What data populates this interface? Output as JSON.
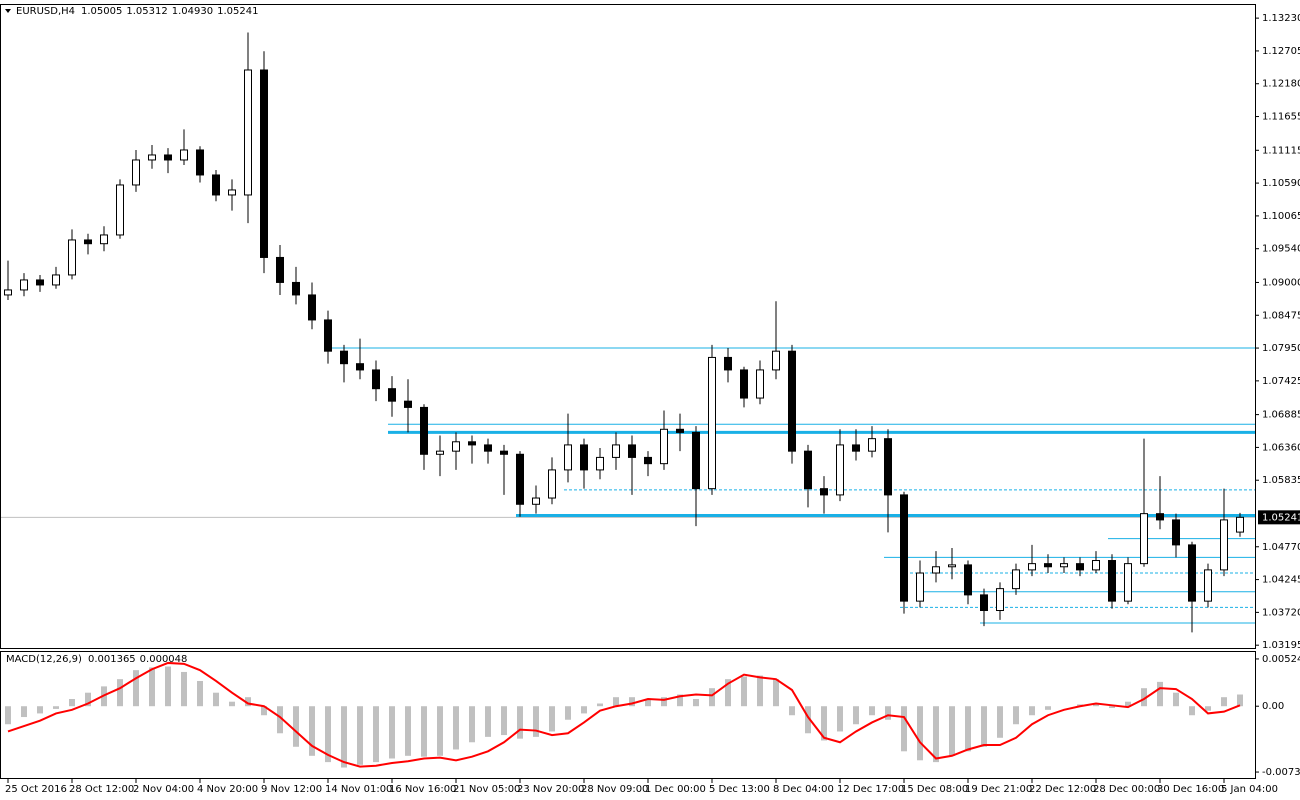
{
  "chart_data": [
    {
      "type": "candlestick",
      "title": "EURUSD,H4",
      "title_values": [
        1.05005,
        1.05312,
        {
          "value": 1.0493,
          "label": "1.04930"
        },
        1.05241
      ],
      "categories": [
        "25 Oct 2016",
        null,
        null,
        null,
        "28 Oct 12:00",
        null,
        null,
        null,
        "2 Nov 04:00",
        null,
        null,
        null,
        "4 Nov 20:00",
        null,
        null,
        null,
        "9 Nov 12:00",
        null,
        null,
        null,
        "14 Nov 01:00",
        null,
        null,
        null,
        "16 Nov 16:00",
        null,
        null,
        null,
        "21 Nov 05:00",
        null,
        null,
        null,
        "23 Nov 20:00",
        null,
        null,
        null,
        "28 Nov 09:00",
        null,
        null,
        null,
        "1 Dec 00:00",
        null,
        null,
        null,
        "5 Dec 13:00",
        null,
        null,
        null,
        "8 Dec 04:00",
        null,
        null,
        null,
        "12 Dec 17:00",
        null,
        null,
        null,
        "15 Dec 08:00",
        null,
        null,
        null,
        "19 Dec 21:00",
        null,
        null,
        null,
        "22 Dec 12:00",
        null,
        null,
        null,
        "28 Dec 00:00",
        null,
        null,
        null,
        "30 Dec 16:00",
        null,
        null,
        null,
        "5 Jan 04:00",
        null
      ],
      "open": [
        1.088,
        1.0888,
        1.0904,
        1.0896,
        1.0912,
        1.0968,
        1.0962,
        1.0976,
        1.1056,
        1.1096,
        1.1104,
        1.1096,
        1.1112,
        1.1072,
        1.104,
        1.104,
        1.124,
        1.094,
        1.09,
        1.088,
        1.084,
        1.079,
        1.077,
        1.076,
        1.073,
        1.071,
        1.07,
        1.0625,
        1.063,
        1.0645,
        1.064,
        1.063,
        1.0625,
        1.0545,
        1.0555,
        1.06,
        1.064,
        1.06,
        1.062,
        1.064,
        1.062,
        1.061,
        1.0665,
        1.066,
        1.057,
        1.078,
        1.076,
        1.0715,
        1.076,
        1.079,
        1.063,
        1.057,
        1.056,
        1.064,
        1.063,
        1.065,
        1.056,
        1.039,
        1.0435,
        1.0445,
        1.0448,
        1.04,
        1.0375,
        1.041,
        1.044,
        1.045,
        1.0445,
        1.045,
        1.044,
        1.0455,
        1.039,
        1.045,
        1.053,
        1.052,
        1.048,
        1.039,
        1.044,
        1.05005
      ],
      "high": [
        1.0935,
        1.0915,
        1.0912,
        1.0925,
        1.0985,
        1.0978,
        1.099,
        1.1065,
        1.1112,
        1.112,
        1.1115,
        1.1145,
        1.1118,
        1.108,
        1.1065,
        1.13,
        1.127,
        1.096,
        1.0925,
        1.09,
        1.0855,
        1.08,
        1.081,
        1.0775,
        1.075,
        1.0745,
        1.0705,
        1.0655,
        1.066,
        1.0655,
        1.065,
        1.064,
        1.063,
        1.0575,
        1.062,
        1.069,
        1.065,
        1.0635,
        1.066,
        1.0655,
        1.063,
        1.0695,
        1.069,
        1.067,
        1.08,
        1.0795,
        1.0765,
        1.0775,
        1.087,
        1.08,
        1.064,
        1.059,
        1.0665,
        1.0665,
        1.067,
        1.0665,
        1.0565,
        1.0455,
        1.047,
        1.0475,
        1.0455,
        1.041,
        1.042,
        1.045,
        1.048,
        1.0465,
        1.046,
        1.046,
        1.047,
        1.0465,
        1.046,
        1.065,
        1.059,
        1.053,
        1.0485,
        1.045,
        1.057,
        1.05312
      ],
      "low": [
        1.0872,
        1.0878,
        1.0885,
        1.089,
        1.0905,
        1.0945,
        1.095,
        1.097,
        1.1045,
        1.1082,
        1.1075,
        1.1088,
        1.106,
        1.103,
        1.1015,
        1.0995,
        1.0915,
        1.088,
        1.0865,
        1.0825,
        1.077,
        1.074,
        1.0745,
        1.071,
        1.0685,
        1.066,
        1.06,
        1.059,
        1.06,
        1.061,
        1.061,
        1.056,
        1.0525,
        1.053,
        1.0545,
        1.058,
        1.057,
        1.0585,
        1.06,
        1.056,
        1.059,
        1.06,
        1.063,
        1.051,
        1.056,
        1.074,
        1.07,
        1.0705,
        1.0745,
        1.061,
        1.054,
        1.053,
        1.055,
        1.0615,
        1.062,
        1.05,
        1.037,
        1.038,
        1.042,
        1.0425,
        1.0385,
        1.035,
        1.036,
        1.04,
        1.043,
        1.0435,
        1.0435,
        1.043,
        1.0435,
        1.0378,
        1.0385,
        1.0445,
        1.0505,
        1.046,
        1.034,
        1.038,
        1.043,
        1.0493
      ],
      "close": [
        1.0888,
        1.0904,
        1.0896,
        1.0912,
        1.0968,
        1.0962,
        1.0976,
        1.1056,
        1.1096,
        1.1104,
        1.1096,
        1.1112,
        1.1072,
        1.104,
        1.1048,
        1.124,
        1.094,
        1.09,
        1.088,
        1.084,
        1.079,
        1.077,
        1.076,
        1.073,
        1.071,
        1.07,
        1.0625,
        1.063,
        1.0645,
        1.064,
        1.063,
        1.0625,
        1.0545,
        1.0555,
        1.06,
        1.064,
        1.06,
        1.062,
        1.064,
        1.062,
        1.061,
        1.0665,
        1.066,
        1.057,
        1.078,
        1.076,
        1.0715,
        1.076,
        1.079,
        1.063,
        1.057,
        1.056,
        1.064,
        1.063,
        1.065,
        1.056,
        1.039,
        1.0435,
        1.0445,
        1.0448,
        1.04,
        1.0375,
        1.041,
        1.044,
        1.045,
        1.0445,
        1.045,
        1.044,
        1.0455,
        1.039,
        1.045,
        1.053,
        1.052,
        1.048,
        1.039,
        1.044,
        1.052,
        1.05241
      ],
      "up_color": "#ffffff",
      "down_color": "#000000",
      "ylim": [
        1.0315,
        1.1344
      ],
      "yticks": [
        {
          "value": 1.1323,
          "label": "1.13230"
        },
        1.12705,
        {
          "value": 1.1218,
          "label": "1.12180"
        },
        1.11655,
        1.11115,
        {
          "value": 1.1059,
          "label": "1.10590"
        },
        1.10065,
        {
          "value": 1.0954,
          "label": "1.09540"
        },
        {
          "value": 1.09,
          "label": "1.09000"
        },
        1.08475,
        {
          "value": 1.0795,
          "label": "1.07950"
        },
        1.07425,
        1.06885,
        {
          "value": 1.0636,
          "label": "1.06360"
        },
        1.05835,
        {
          "value": 1.0477,
          "label": "1.04770"
        },
        1.04245,
        {
          "value": 1.0372,
          "label": "1.03720"
        },
        1.03195
      ],
      "last_price": 1.05241,
      "level_color": "#1ab0e6",
      "levels": [
        {
          "value": 1.0795,
          "start": 20,
          "style": "thin"
        },
        {
          "value": 1.0673,
          "start": 24,
          "style": "thin"
        },
        {
          "value": 1.066,
          "start": 24,
          "style": "thick"
        },
        {
          "value": 1.0568,
          "start": 35,
          "style": "dashed"
        },
        {
          "value": 1.0527,
          "start": 32,
          "style": "thick"
        },
        {
          "value": 1.049,
          "start": 69,
          "style": "thin"
        },
        {
          "value": 1.046,
          "start": 55,
          "style": "thin"
        },
        {
          "value": 1.0435,
          "start": 56,
          "style": "dashed"
        },
        {
          "value": 1.0405,
          "start": 57,
          "style": "thin"
        },
        {
          "value": 1.038,
          "start": 56,
          "style": "dashed"
        },
        {
          "value": 1.0355,
          "start": 61,
          "style": "thin"
        }
      ]
    },
    {
      "type": "macd",
      "title": "MACD(12,26,9)",
      "title_values": [
        0.001365,
        4.8e-05
      ],
      "ylim": [
        -0.007963,
        0.006014
      ],
      "yticks": [
        0.005244,
        {
          "value": 0,
          "label": "0.00"
        },
        -0.007303
      ],
      "histogram": {
        "color": "#c0c0c0",
        "values": [
          -0.002,
          -0.0012,
          -0.0008,
          -0.0003,
          0.0008,
          0.0015,
          0.0022,
          0.003,
          0.004,
          0.0043,
          0.0044,
          0.0038,
          0.0028,
          0.0015,
          0.0005,
          0.001,
          -0.001,
          -0.003,
          -0.0045,
          -0.0055,
          -0.0062,
          -0.0068,
          -0.0065,
          -0.0062,
          -0.0058,
          -0.0055,
          -0.0056,
          -0.0055,
          -0.0048,
          -0.004,
          -0.0034,
          -0.0032,
          -0.0036,
          -0.0034,
          -0.0028,
          -0.0015,
          -0.0008,
          0.0003,
          0.001,
          0.001,
          0.0008,
          0.001,
          0.0013,
          0.0008,
          0.002,
          0.003,
          0.0033,
          0.0034,
          0.003,
          -0.001,
          -0.003,
          -0.0038,
          -0.0028,
          -0.002,
          -0.001,
          -0.0015,
          -0.005,
          -0.006,
          -0.0062,
          -0.0055,
          -0.005,
          -0.0045,
          -0.0035,
          -0.002,
          -0.001,
          -0.0004,
          0,
          0.0002,
          0.0003,
          -0.0002,
          0.0005,
          0.002,
          0.0027,
          0.0015,
          -0.001,
          -0.0005,
          0.001,
          0.0013
        ]
      },
      "signal": {
        "color": "#ff0000",
        "values": [
          -0.0028,
          -0.0022,
          -0.0016,
          -0.0008,
          -0.0004,
          0.0003,
          0.0012,
          0.002,
          0.0031,
          0.0041,
          0.0048,
          0.0047,
          0.004,
          0.0028,
          0.0015,
          0.0003,
          0,
          -0.0012,
          -0.0028,
          -0.0044,
          -0.0054,
          -0.0062,
          -0.0067,
          -0.0066,
          -0.0063,
          -0.0061,
          -0.0058,
          -0.0057,
          -0.006,
          -0.0056,
          -0.005,
          -0.004,
          -0.0026,
          -0.0027,
          -0.0032,
          -0.003,
          -0.0018,
          -0.0005,
          0,
          0.0003,
          0.0008,
          0.0007,
          0.0011,
          0.0013,
          0.0012,
          0.0025,
          0.0035,
          0.0032,
          0.003,
          0.0018,
          -0.0012,
          -0.0035,
          -0.004,
          -0.0028,
          -0.0018,
          -0.001,
          -0.0012,
          -0.004,
          -0.0058,
          -0.0055,
          -0.0048,
          -0.0043,
          -0.0043,
          -0.0035,
          -0.002,
          -0.001,
          -0.0004,
          0,
          0.0003,
          0.0001,
          -0.0001,
          0.0008,
          0.002,
          0.0019,
          0.0008,
          -0.0008,
          -0.0006,
          0.0001
        ]
      }
    }
  ]
}
